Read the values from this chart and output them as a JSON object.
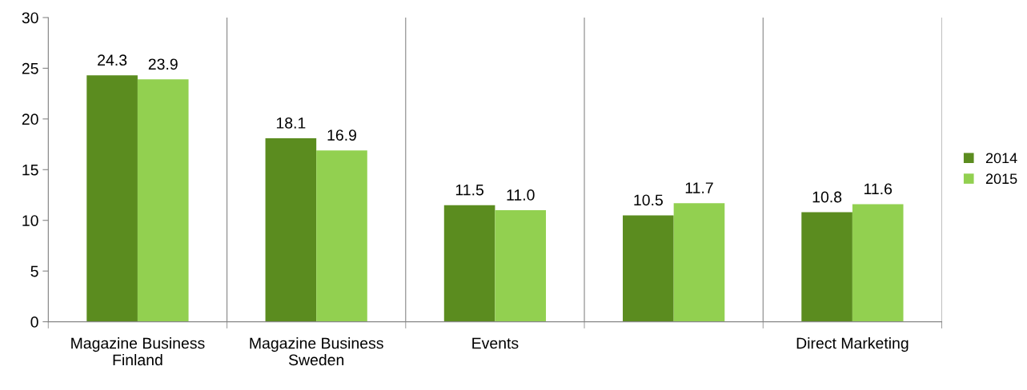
{
  "chart_data": {
    "type": "bar",
    "categories": [
      "Magazine Business\nFinland",
      "Magazine Business\nSweden",
      "Events",
      null,
      "Direct Marketing"
    ],
    "series": [
      {
        "name": "2014",
        "color": "#5b8c1f",
        "values": [
          24.3,
          18.1,
          11.5,
          10.5,
          10.8
        ]
      },
      {
        "name": "2015",
        "color": "#92d050",
        "values": [
          23.9,
          16.9,
          11.0,
          11.7,
          11.6
        ]
      }
    ],
    "ylim": [
      0,
      30
    ],
    "yticks": [
      0,
      5,
      10,
      15,
      20,
      25,
      30
    ],
    "value_labels": [
      [
        "24.3",
        "18.1",
        "11.5",
        "10.5",
        "10.8"
      ],
      [
        "23.9",
        "16.9",
        "11.0",
        "11.7",
        "11.6"
      ]
    ],
    "grid": "x",
    "legend": "right"
  }
}
